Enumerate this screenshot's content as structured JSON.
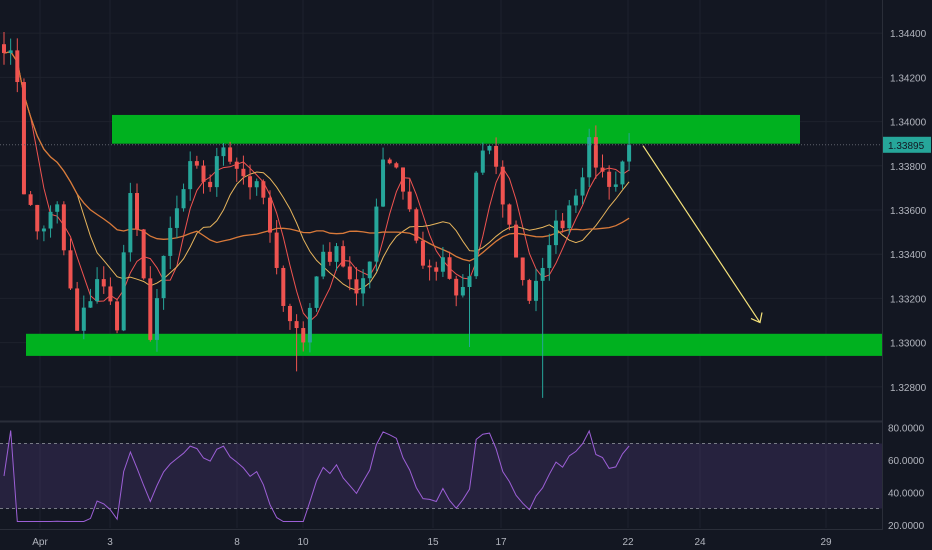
{
  "chart_data": {
    "type": "candlestick",
    "price_axis": {
      "ticks": [
        "1.34400",
        "1.34200",
        "1.34000",
        "1.33800",
        "1.33600",
        "1.33400",
        "1.33200",
        "1.33000",
        "1.32800"
      ],
      "range": [
        1.3265,
        1.3455
      ]
    },
    "rsi_axis": {
      "ticks": [
        "80.0000",
        "60.0000",
        "40.0000",
        "20.0000"
      ],
      "range": [
        18,
        82
      ],
      "band": [
        30,
        70
      ]
    },
    "time_axis": {
      "labels": [
        "Apr",
        "3",
        "8",
        "10",
        "15",
        "17",
        "22",
        "24",
        "29"
      ]
    },
    "last_price": "1.33895",
    "resistance_zone": [
      1.339,
      1.3403
    ],
    "support_zone": [
      1.3294,
      1.3304
    ],
    "projection": {
      "from": 1.339,
      "to": 1.331
    },
    "key_points": [
      [
        0,
        1.3436
      ],
      [
        2,
        1.342
      ],
      [
        3,
        1.337
      ],
      [
        5,
        1.335
      ],
      [
        8,
        1.336
      ],
      [
        11,
        1.3304
      ],
      [
        14,
        1.333
      ],
      [
        17,
        1.331
      ],
      [
        19,
        1.3368
      ],
      [
        22,
        1.3305
      ],
      [
        25,
        1.335
      ],
      [
        28,
        1.3378
      ],
      [
        31,
        1.3372
      ],
      [
        33,
        1.339
      ],
      [
        36,
        1.3376
      ],
      [
        39,
        1.3365
      ],
      [
        41,
        1.333
      ],
      [
        43,
        1.3312
      ],
      [
        45,
        1.33
      ],
      [
        47,
        1.3333
      ],
      [
        50,
        1.3345
      ],
      [
        53,
        1.3318
      ],
      [
        55,
        1.334
      ],
      [
        57,
        1.3385
      ],
      [
        59,
        1.338
      ],
      [
        61,
        1.336
      ],
      [
        62,
        1.3345
      ],
      [
        64,
        1.333
      ],
      [
        66,
        1.3335
      ],
      [
        68,
        1.332
      ],
      [
        70,
        1.333
      ],
      [
        71,
        1.3375
      ],
      [
        73,
        1.339
      ],
      [
        75,
        1.3365
      ],
      [
        77,
        1.334
      ],
      [
        79,
        1.332
      ],
      [
        81,
        1.333
      ],
      [
        82,
        1.3348
      ],
      [
        84,
        1.3356
      ],
      [
        86,
        1.337
      ],
      [
        88,
        1.3388
      ],
      [
        90,
        1.3376
      ],
      [
        92,
        1.3372
      ],
      [
        94,
        1.339
      ]
    ]
  }
}
